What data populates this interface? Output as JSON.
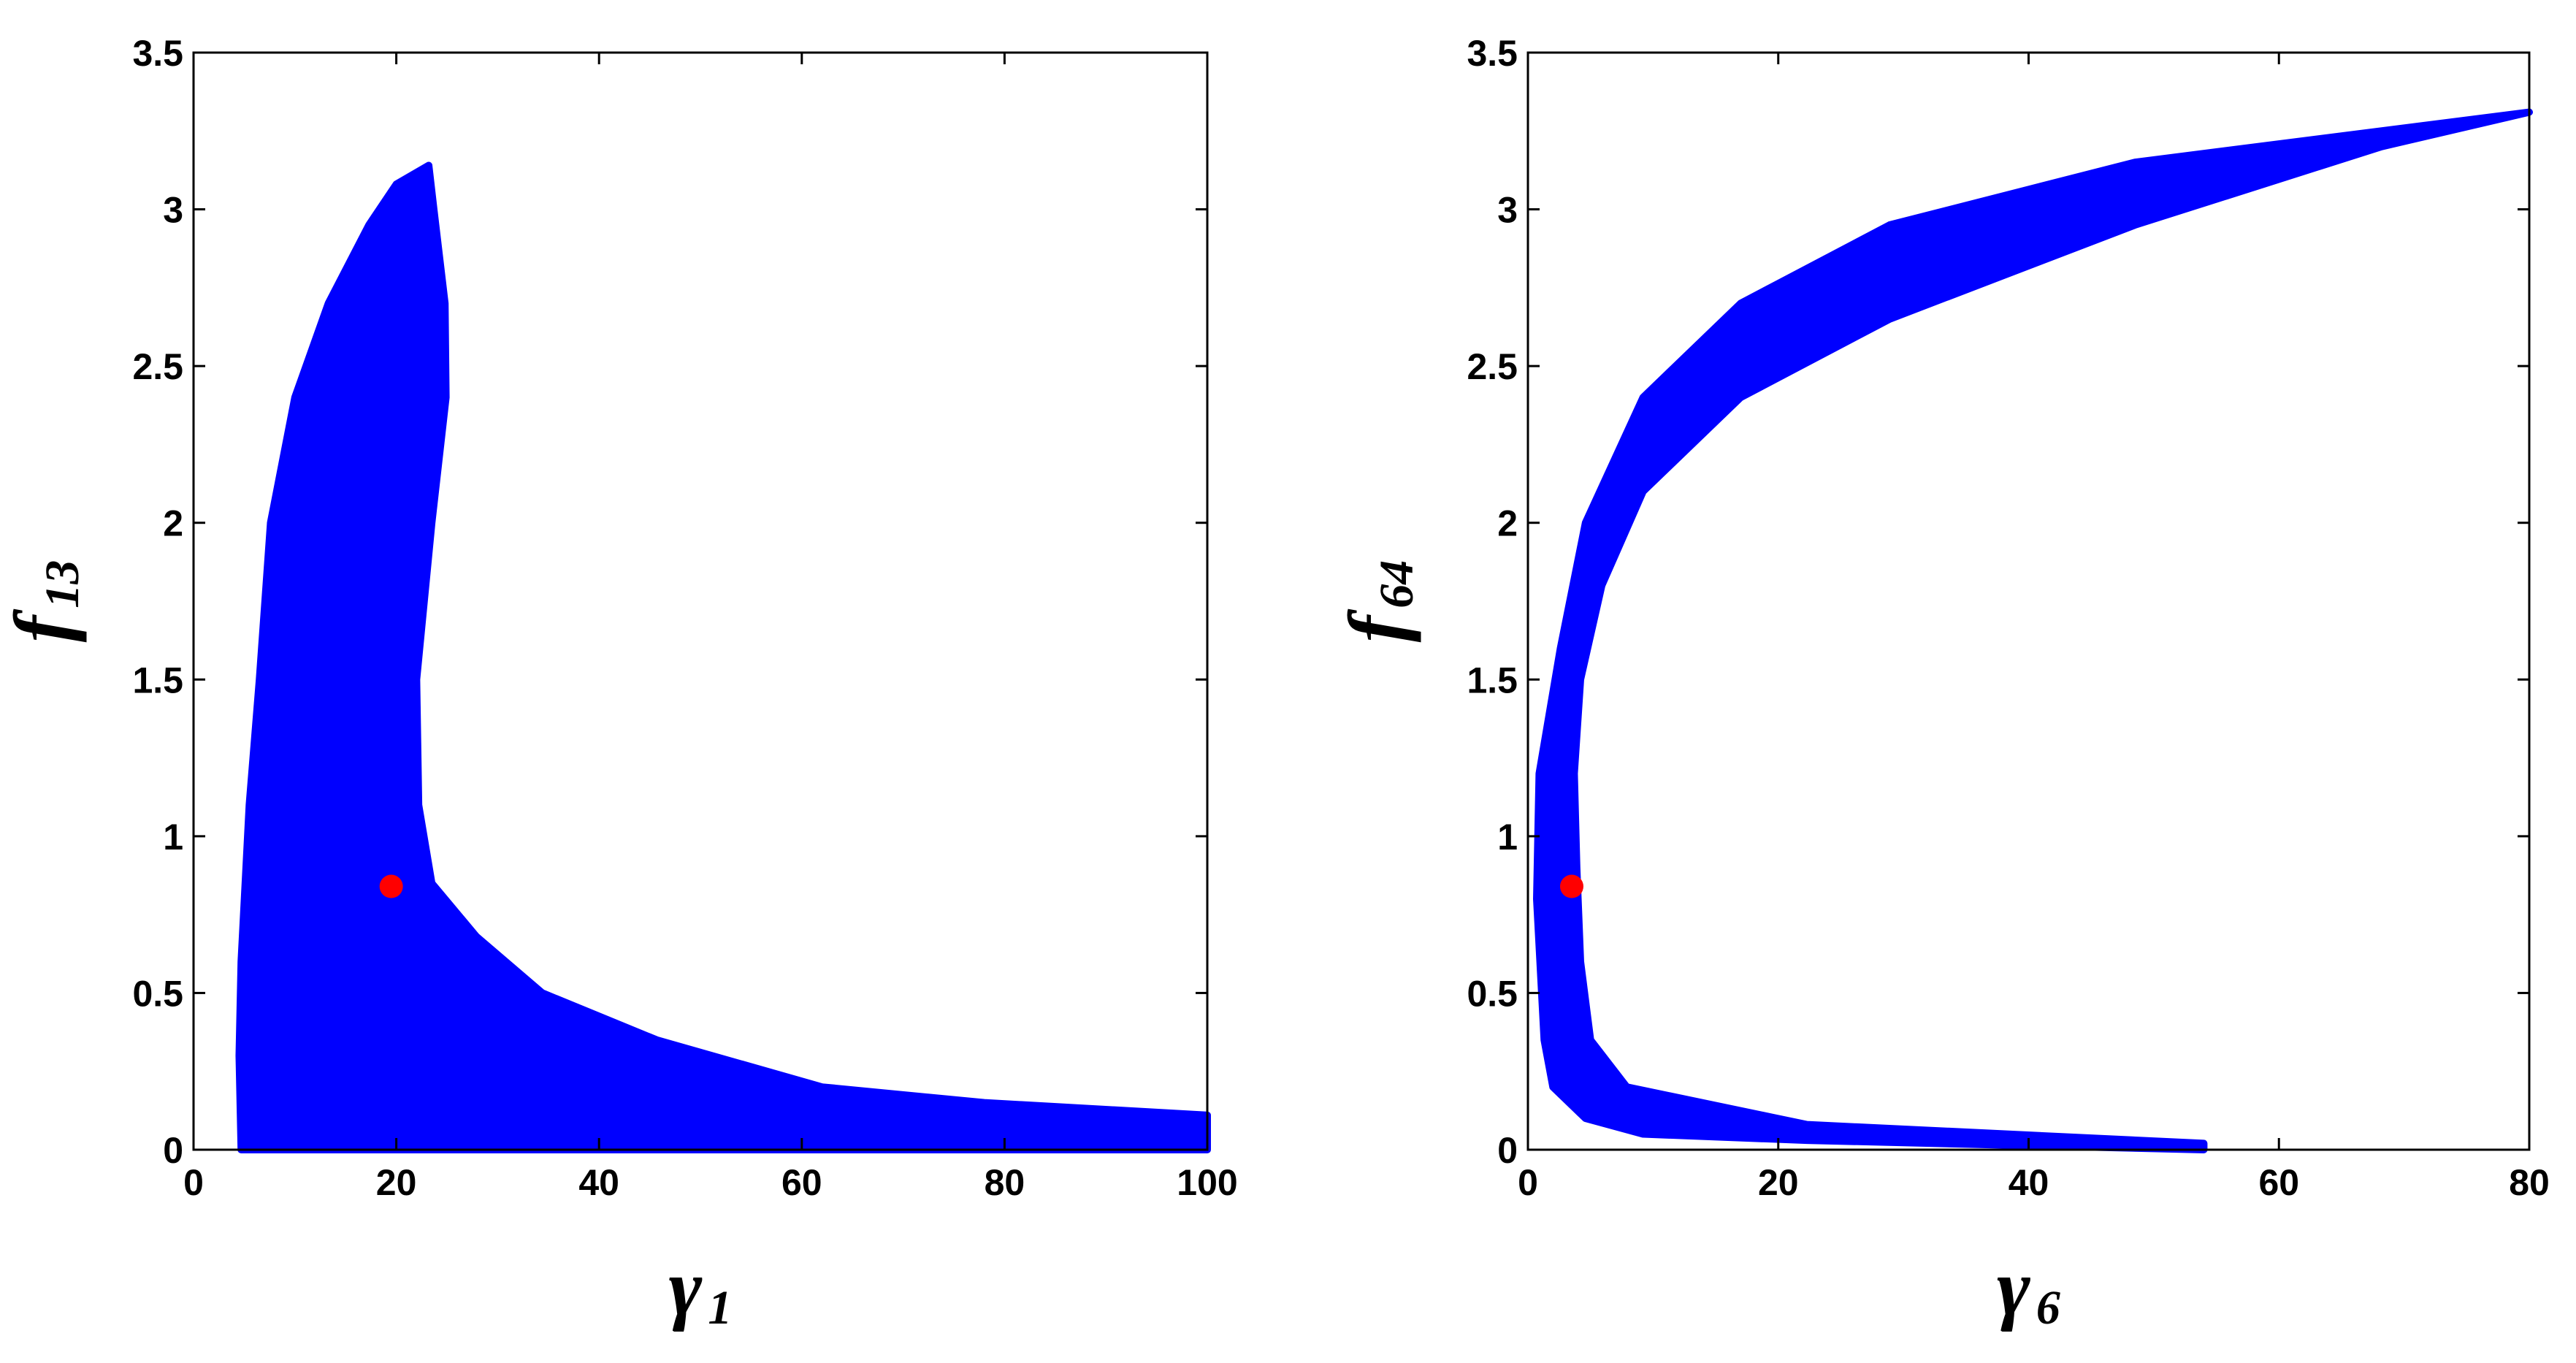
{
  "chart_data": [
    {
      "type": "scatter",
      "xlabel": "γ",
      "xlabel_sub": "1",
      "ylabel": "f",
      "ylabel_sub": "13",
      "xlim": [
        0,
        100
      ],
      "xticks": [
        0,
        20,
        40,
        60,
        80,
        100
      ],
      "ylim": [
        0,
        3.5
      ],
      "yticks": [
        0,
        0.5,
        1,
        1.5,
        2,
        2.5,
        3,
        3.5
      ],
      "series": [
        {
          "color": "#0000ff",
          "fill": true,
          "x": [
            4.7,
            4.5,
            4.7,
            5.5,
            6.5,
            7.6,
            10,
            13.3,
            17.3,
            20,
            23.2,
            23.7,
            24.8,
            24.9,
            23.5,
            22,
            22.2,
            23.5,
            27.9,
            34.4,
            45.7,
            62,
            78,
            100,
            100
          ],
          "values": [
            0,
            0.3,
            0.6,
            1.1,
            1.5,
            2.0,
            2.4,
            2.7,
            2.95,
            3.08,
            3.14,
            3.0,
            2.7,
            2.4,
            2.0,
            1.5,
            1.1,
            0.85,
            0.68,
            0.5,
            0.35,
            0.2,
            0.15,
            0.11,
            0
          ]
        },
        {
          "color": "#ff0000",
          "x": [
            19.5
          ],
          "values": [
            0.84
          ]
        }
      ]
    },
    {
      "type": "scatter",
      "xlabel": "γ",
      "xlabel_sub": "6",
      "ylabel": "f",
      "ylabel_sub": "64",
      "xlim": [
        0,
        80
      ],
      "xticks": [
        0,
        20,
        40,
        60,
        80
      ],
      "ylim": [
        0,
        3.5
      ],
      "yticks": [
        0,
        0.5,
        1,
        1.5,
        2,
        2.5,
        3,
        3.5
      ],
      "series": [
        {
          "color": "#0000ff",
          "fill": true,
          "x": [
            54,
            22.3,
            9.2,
            4.6,
            2,
            1.3,
            0.7,
            0.9,
            2.6,
            4.6,
            9.2,
            17,
            28.9,
            48.5,
            80,
            68.2,
            48.5,
            28.9,
            17,
            9.2,
            5.9,
            4.2,
            3.7,
            3.9,
            4.2,
            5,
            7.9,
            22.3,
            54
          ],
          "values": [
            0,
            0.03,
            0.05,
            0.1,
            0.2,
            0.35,
            0.8,
            1.2,
            1.6,
            2.0,
            2.4,
            2.7,
            2.95,
            3.15,
            3.31,
            3.2,
            2.95,
            2.65,
            2.4,
            2.1,
            1.8,
            1.5,
            1.2,
            0.9,
            0.6,
            0.35,
            0.2,
            0.08,
            0.02
          ]
        },
        {
          "color": "#ff0000",
          "x": [
            3.5
          ],
          "values": [
            0.84
          ]
        }
      ]
    }
  ]
}
